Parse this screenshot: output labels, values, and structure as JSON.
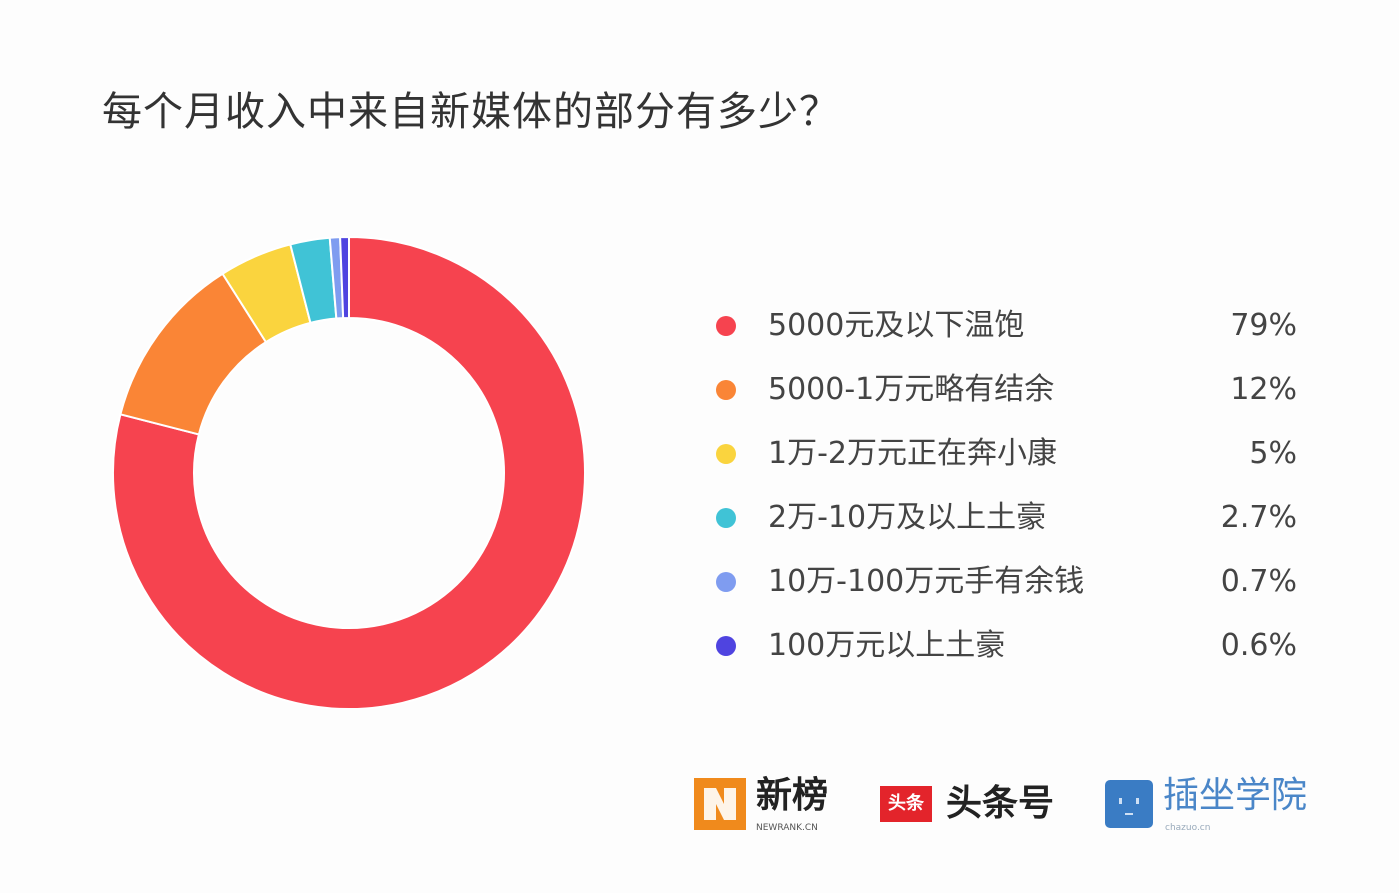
{
  "chart_data": {
    "type": "pie",
    "donut": true,
    "title": "每个月收入中来自新媒体的部分有多少？",
    "legend_position": "right",
    "slices": [
      {
        "label": "5000元及以下温饱",
        "value": 79,
        "display": "79%",
        "color": "#f6434f"
      },
      {
        "label": "5000-1万元略有结余",
        "value": 12,
        "display": "12%",
        "color": "#fa8536"
      },
      {
        "label": "1万-2万元正在奔小康",
        "value": 5,
        "display": "5%",
        "color": "#fad43e"
      },
      {
        "label": "2万-10万及以上土豪",
        "value": 2.7,
        "display": "2.7%",
        "color": "#40c3d6"
      },
      {
        "label": "10万-100万元手有余钱",
        "value": 0.7,
        "display": "0.7%",
        "color": "#7f9cf0"
      },
      {
        "label": "100万元以上土豪",
        "value": 0.6,
        "display": "0.6%",
        "color": "#4f44e0"
      }
    ]
  },
  "logos": [
    {
      "name": "新榜",
      "sub": "NEWRANK.CN",
      "color": "#f08a1c"
    },
    {
      "name": "头条号",
      "badge": "头条",
      "color": "#e3242b"
    },
    {
      "name": "插坐学院",
      "sub": "chazuo.cn",
      "color": "#3a7cc4"
    }
  ]
}
